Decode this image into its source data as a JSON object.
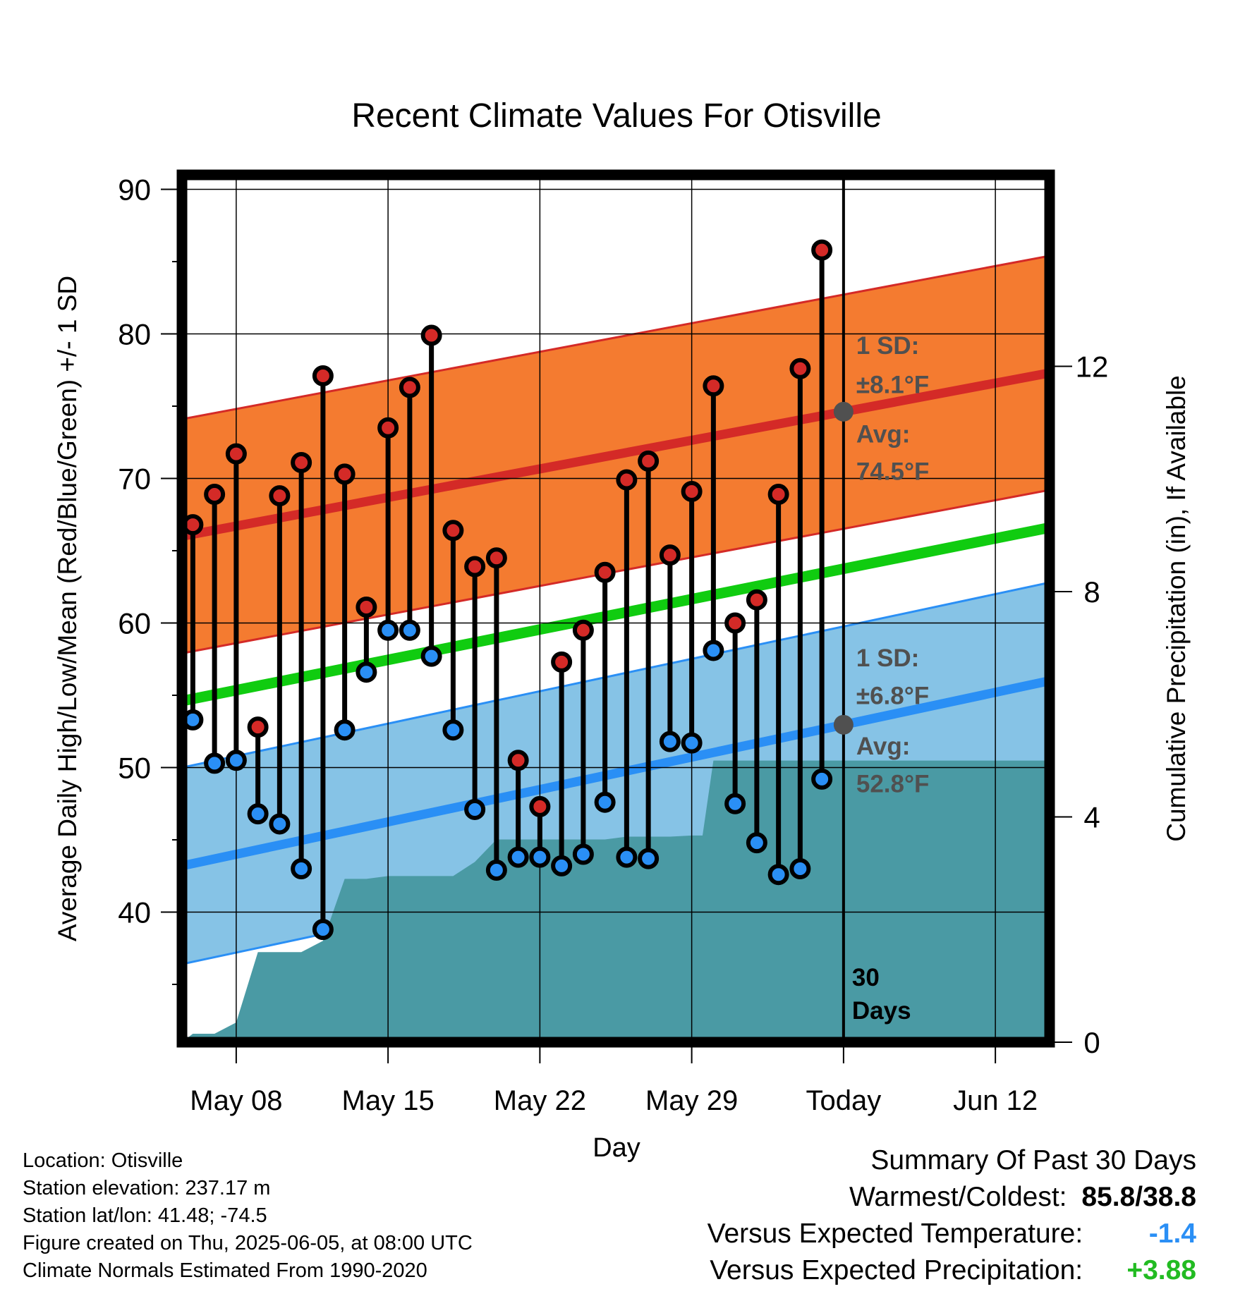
{
  "chart_data": {
    "type": "line",
    "title": "Recent Climate Values For Otisville",
    "xlabel": "Day",
    "ylabel": "Average Daily High/Low/Mean (Red/Blue/Green) +/- 1 SD",
    "y2label": "Cumulative Precipitation (in), If Available",
    "x_start_date": "2025-05-05",
    "xlim_days": [
      0.5,
      40.5
    ],
    "ylim": [
      31,
      91
    ],
    "y_ticks": [
      40,
      50,
      60,
      70,
      80,
      90
    ],
    "y2lim": [
      0,
      15.4
    ],
    "y2_ticks": [
      0,
      4,
      8,
      12
    ],
    "x_ticks": [
      {
        "day": 3,
        "label": "May 08"
      },
      {
        "day": 10,
        "label": "May 15"
      },
      {
        "day": 17,
        "label": "May 22"
      },
      {
        "day": 24,
        "label": "May 29"
      },
      {
        "day": 31,
        "label": "Today"
      },
      {
        "day": 38,
        "label": "Jun 12"
      }
    ],
    "today_day": 31,
    "days_label": "30 Days",
    "normals": {
      "high_avg": [
        66.0,
        77.3
      ],
      "high_sd": 8.1,
      "low_avg": [
        43.2,
        56.0
      ],
      "low_sd": 6.8,
      "mean_avg": [
        54.6,
        66.6
      ]
    },
    "annotations": {
      "high_sd_label": "1 SD:",
      "high_sd_value": "±8.1°F",
      "high_avg_label": "Avg:",
      "high_avg_value": "74.5°F",
      "low_sd_label": "1 SD:",
      "low_sd_value": "±6.8°F",
      "low_avg_label": "Avg:",
      "low_avg_value": "52.8°F"
    },
    "series": [
      {
        "name": "High",
        "values": [
          66.8,
          68.9,
          71.7,
          52.8,
          68.8,
          71.1,
          77.1,
          70.3,
          61.1,
          73.5,
          76.3,
          79.9,
          66.4,
          63.9,
          64.5,
          50.5,
          47.3,
          57.3,
          59.5,
          63.5,
          69.9,
          71.2,
          64.7,
          69.1,
          76.4,
          60.0,
          61.6,
          68.9,
          77.6,
          85.8
        ]
      },
      {
        "name": "Low",
        "values": [
          53.3,
          50.3,
          50.5,
          46.8,
          46.1,
          43.0,
          38.8,
          52.6,
          56.6,
          59.5,
          59.5,
          57.7,
          52.6,
          47.1,
          42.9,
          43.8,
          43.8,
          43.2,
          44.0,
          47.6,
          43.8,
          43.7,
          51.8,
          51.7,
          58.1,
          47.5,
          44.8,
          42.6,
          43.0,
          49.2
        ]
      },
      {
        "name": "Cumulative Precipitation",
        "days": [
          0.5,
          1,
          2,
          2.5,
          3,
          4,
          5,
          6,
          7,
          8,
          9,
          10,
          11,
          12,
          13,
          14,
          15,
          16,
          17,
          18,
          19,
          20,
          21,
          22,
          23,
          24,
          24.5,
          25,
          26,
          27,
          28,
          29,
          30,
          31,
          40.5
        ],
        "values": [
          0,
          0.15,
          0.15,
          0.25,
          0.35,
          1.6,
          1.6,
          1.6,
          1.8,
          2.9,
          2.9,
          2.95,
          2.95,
          2.95,
          2.95,
          3.2,
          3.6,
          3.6,
          3.6,
          3.6,
          3.6,
          3.6,
          3.65,
          3.65,
          3.65,
          3.67,
          3.67,
          5.0,
          5.0,
          5.0,
          5.0,
          5.0,
          5.0,
          5.0,
          5.0
        ]
      }
    ]
  },
  "info": {
    "location": "Location: Otisville",
    "elevation": "Station elevation: 237.17 m",
    "latlon": "Station lat/lon: 41.48; -74.5",
    "created": "Figure created on Thu, 2025-06-05, at 08:00 UTC",
    "normals": "Climate Normals Estimated From 1990-2020"
  },
  "summary": {
    "heading": "Summary Of Past 30 Days",
    "warm_cold_label": "Warmest/Coldest:",
    "warm_cold_value": "85.8/38.8",
    "temp_label": "Versus Expected Temperature:",
    "temp_value": "-1.4",
    "precip_label": "Versus Expected Precipitation:",
    "precip_value": "+3.88"
  },
  "colors": {
    "high_band": "#f47b30",
    "high_avg": "#d42a27",
    "low_band": "#86c3e6",
    "low_avg": "#2a8ff5",
    "mean": "#10cc10",
    "precip": "#4a9aa4",
    "high_dot": "#d42a27",
    "low_dot": "#2a8ff5",
    "temp_value": "#2a8ff5",
    "precip_value": "#22bb22"
  }
}
